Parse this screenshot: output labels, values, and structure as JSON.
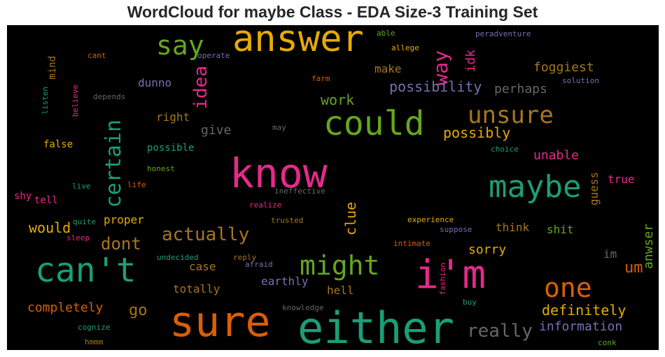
{
  "chart_data": {
    "type": "wordcloud",
    "title": "WordCloud for maybe Class - EDA Size-3 Training Set",
    "background": "#000000",
    "palette": [
      "#1b9e77",
      "#d95f02",
      "#7570b3",
      "#e7298a",
      "#66a61e",
      "#e6ab02",
      "#a6761d",
      "#666666"
    ],
    "words": [
      {
        "text": "either",
        "size": 62,
        "color": "#1b9e77",
        "vertical": false
      },
      {
        "text": "sure",
        "size": 60,
        "color": "#d95f02",
        "vertical": false
      },
      {
        "text": "know",
        "size": 58,
        "color": "#e7298a",
        "vertical": false
      },
      {
        "text": "i'm",
        "size": 56,
        "color": "#e7298a",
        "vertical": false
      },
      {
        "text": "answer",
        "size": 52,
        "color": "#e6ab02",
        "vertical": false
      },
      {
        "text": "can't",
        "size": 48,
        "color": "#1b9e77",
        "vertical": false
      },
      {
        "text": "could",
        "size": 48,
        "color": "#66a61e",
        "vertical": false
      },
      {
        "text": "maybe",
        "size": 44,
        "color": "#1b9e77",
        "vertical": false
      },
      {
        "text": "one",
        "size": 38,
        "color": "#d95f02",
        "vertical": false
      },
      {
        "text": "might",
        "size": 38,
        "color": "#66a61e",
        "vertical": false
      },
      {
        "text": "say",
        "size": 38,
        "color": "#66a61e",
        "vertical": false
      },
      {
        "text": "unsure",
        "size": 34,
        "color": "#a6761d",
        "vertical": false
      },
      {
        "text": "certain",
        "size": 30,
        "color": "#1b9e77",
        "vertical": true
      },
      {
        "text": "idea",
        "size": 26,
        "color": "#e7298a",
        "vertical": true
      },
      {
        "text": "way",
        "size": 28,
        "color": "#e7298a",
        "vertical": true
      },
      {
        "text": "actually",
        "size": 26,
        "color": "#a6761d",
        "vertical": false
      },
      {
        "text": "really",
        "size": 26,
        "color": "#666666",
        "vertical": false
      },
      {
        "text": "dont",
        "size": 24,
        "color": "#a6761d",
        "vertical": false
      },
      {
        "text": "um",
        "size": 22,
        "color": "#d95f02",
        "vertical": false
      },
      {
        "text": "go",
        "size": 22,
        "color": "#a6761d",
        "vertical": false
      },
      {
        "text": "possibility",
        "size": 20,
        "color": "#7570b3",
        "vertical": false
      },
      {
        "text": "definitely",
        "size": 20,
        "color": "#e6ab02",
        "vertical": false
      },
      {
        "text": "possibly",
        "size": 20,
        "color": "#e6ab02",
        "vertical": false
      },
      {
        "text": "work",
        "size": 20,
        "color": "#66a61e",
        "vertical": false
      },
      {
        "text": "clue",
        "size": 20,
        "color": "#e6ab02",
        "vertical": true
      },
      {
        "text": "would",
        "size": 20,
        "color": "#e6ab02",
        "vertical": false
      },
      {
        "text": "perhaps",
        "size": 18,
        "color": "#666666",
        "vertical": false
      },
      {
        "text": "give",
        "size": 18,
        "color": "#666666",
        "vertical": false
      },
      {
        "text": "foggiest",
        "size": 18,
        "color": "#a6761d",
        "vertical": false
      },
      {
        "text": "sorry",
        "size": 18,
        "color": "#e6ab02",
        "vertical": false
      },
      {
        "text": "information",
        "size": 18,
        "color": "#7570b3",
        "vertical": false
      },
      {
        "text": "completely",
        "size": 18,
        "color": "#d95f02",
        "vertical": false
      },
      {
        "text": "unable",
        "size": 18,
        "color": "#e7298a",
        "vertical": false
      },
      {
        "text": "anwser",
        "size": 18,
        "color": "#66a61e",
        "vertical": true
      },
      {
        "text": "idk",
        "size": 18,
        "color": "#e7298a",
        "vertical": true
      },
      {
        "text": "guess",
        "size": 16,
        "color": "#a6761d",
        "vertical": true
      },
      {
        "text": "dunno",
        "size": 16,
        "color": "#7570b3",
        "vertical": false
      },
      {
        "text": "make",
        "size": 16,
        "color": "#a6761d",
        "vertical": false
      },
      {
        "text": "right",
        "size": 16,
        "color": "#a6761d",
        "vertical": false
      },
      {
        "text": "proper",
        "size": 16,
        "color": "#e6ab02",
        "vertical": false
      },
      {
        "text": "think",
        "size": 16,
        "color": "#a6761d",
        "vertical": false
      },
      {
        "text": "case",
        "size": 16,
        "color": "#a6761d",
        "vertical": false
      },
      {
        "text": "totally",
        "size": 16,
        "color": "#a6761d",
        "vertical": false
      },
      {
        "text": "earthly",
        "size": 16,
        "color": "#7570b3",
        "vertical": false
      },
      {
        "text": "hell",
        "size": 16,
        "color": "#a6761d",
        "vertical": false
      },
      {
        "text": "shit",
        "size": 16,
        "color": "#66a61e",
        "vertical": false
      },
      {
        "text": "true",
        "size": 16,
        "color": "#e7298a",
        "vertical": false
      },
      {
        "text": "im",
        "size": 16,
        "color": "#666666",
        "vertical": false
      },
      {
        "text": "false",
        "size": 14,
        "color": "#e6ab02",
        "vertical": false
      },
      {
        "text": "possible",
        "size": 14,
        "color": "#1b9e77",
        "vertical": false
      },
      {
        "text": "tell",
        "size": 14,
        "color": "#e7298a",
        "vertical": false
      },
      {
        "text": "shy",
        "size": 14,
        "color": "#e7298a",
        "vertical": false
      },
      {
        "text": "mind",
        "size": 14,
        "color": "#a6761d",
        "vertical": true
      },
      {
        "text": "experience",
        "size": 11,
        "color": "#e6ab02",
        "vertical": false
      },
      {
        "text": "suppose",
        "size": 11,
        "color": "#7570b3",
        "vertical": false
      },
      {
        "text": "peradventure",
        "size": 11,
        "color": "#7570b3",
        "vertical": false
      },
      {
        "text": "allege",
        "size": 11,
        "color": "#e6ab02",
        "vertical": false
      },
      {
        "text": "able",
        "size": 11,
        "color": "#66a61e",
        "vertical": false
      },
      {
        "text": "solution",
        "size": 11,
        "color": "#7570b3",
        "vertical": false
      },
      {
        "text": "operate",
        "size": 11,
        "color": "#7570b3",
        "vertical": false
      },
      {
        "text": "cant",
        "size": 11,
        "color": "#d95f02",
        "vertical": false
      },
      {
        "text": "depends",
        "size": 11,
        "color": "#666666",
        "vertical": false
      },
      {
        "text": "farm",
        "size": 11,
        "color": "#d95f02",
        "vertical": false
      },
      {
        "text": "may",
        "size": 11,
        "color": "#666666",
        "vertical": false
      },
      {
        "text": "choice",
        "size": 11,
        "color": "#1b9e77",
        "vertical": false
      },
      {
        "text": "honest",
        "size": 11,
        "color": "#66a61e",
        "vertical": false
      },
      {
        "text": "live",
        "size": 11,
        "color": "#1b9e77",
        "vertical": false
      },
      {
        "text": "life",
        "size": 11,
        "color": "#d95f02",
        "vertical": false
      },
      {
        "text": "ineffective",
        "size": 11,
        "color": "#666666",
        "vertical": false
      },
      {
        "text": "realize",
        "size": 11,
        "color": "#e7298a",
        "vertical": false
      },
      {
        "text": "quite",
        "size": 11,
        "color": "#1b9e77",
        "vertical": false
      },
      {
        "text": "trusted",
        "size": 11,
        "color": "#a6761d",
        "vertical": false
      },
      {
        "text": "sleep",
        "size": 11,
        "color": "#e7298a",
        "vertical": false
      },
      {
        "text": "undecided",
        "size": 11,
        "color": "#1b9e77",
        "vertical": false
      },
      {
        "text": "reply",
        "size": 11,
        "color": "#a6761d",
        "vertical": false
      },
      {
        "text": "afraid",
        "size": 11,
        "color": "#7570b3",
        "vertical": false
      },
      {
        "text": "intimate",
        "size": 11,
        "color": "#d95f02",
        "vertical": false
      },
      {
        "text": "knowledge",
        "size": 11,
        "color": "#666666",
        "vertical": false
      },
      {
        "text": "buy",
        "size": 11,
        "color": "#1b9e77",
        "vertical": false
      },
      {
        "text": "cognize",
        "size": 11,
        "color": "#1b9e77",
        "vertical": false
      },
      {
        "text": "hmmm",
        "size": 11,
        "color": "#a6761d",
        "vertical": false
      },
      {
        "text": "conk",
        "size": 11,
        "color": "#66a61e",
        "vertical": false
      },
      {
        "text": "listen",
        "size": 11,
        "color": "#1b9e77",
        "vertical": true
      },
      {
        "text": "believe",
        "size": 11,
        "color": "#e7298a",
        "vertical": true
      },
      {
        "text": "fashion",
        "size": 11,
        "color": "#e7298a",
        "vertical": true
      }
    ]
  }
}
